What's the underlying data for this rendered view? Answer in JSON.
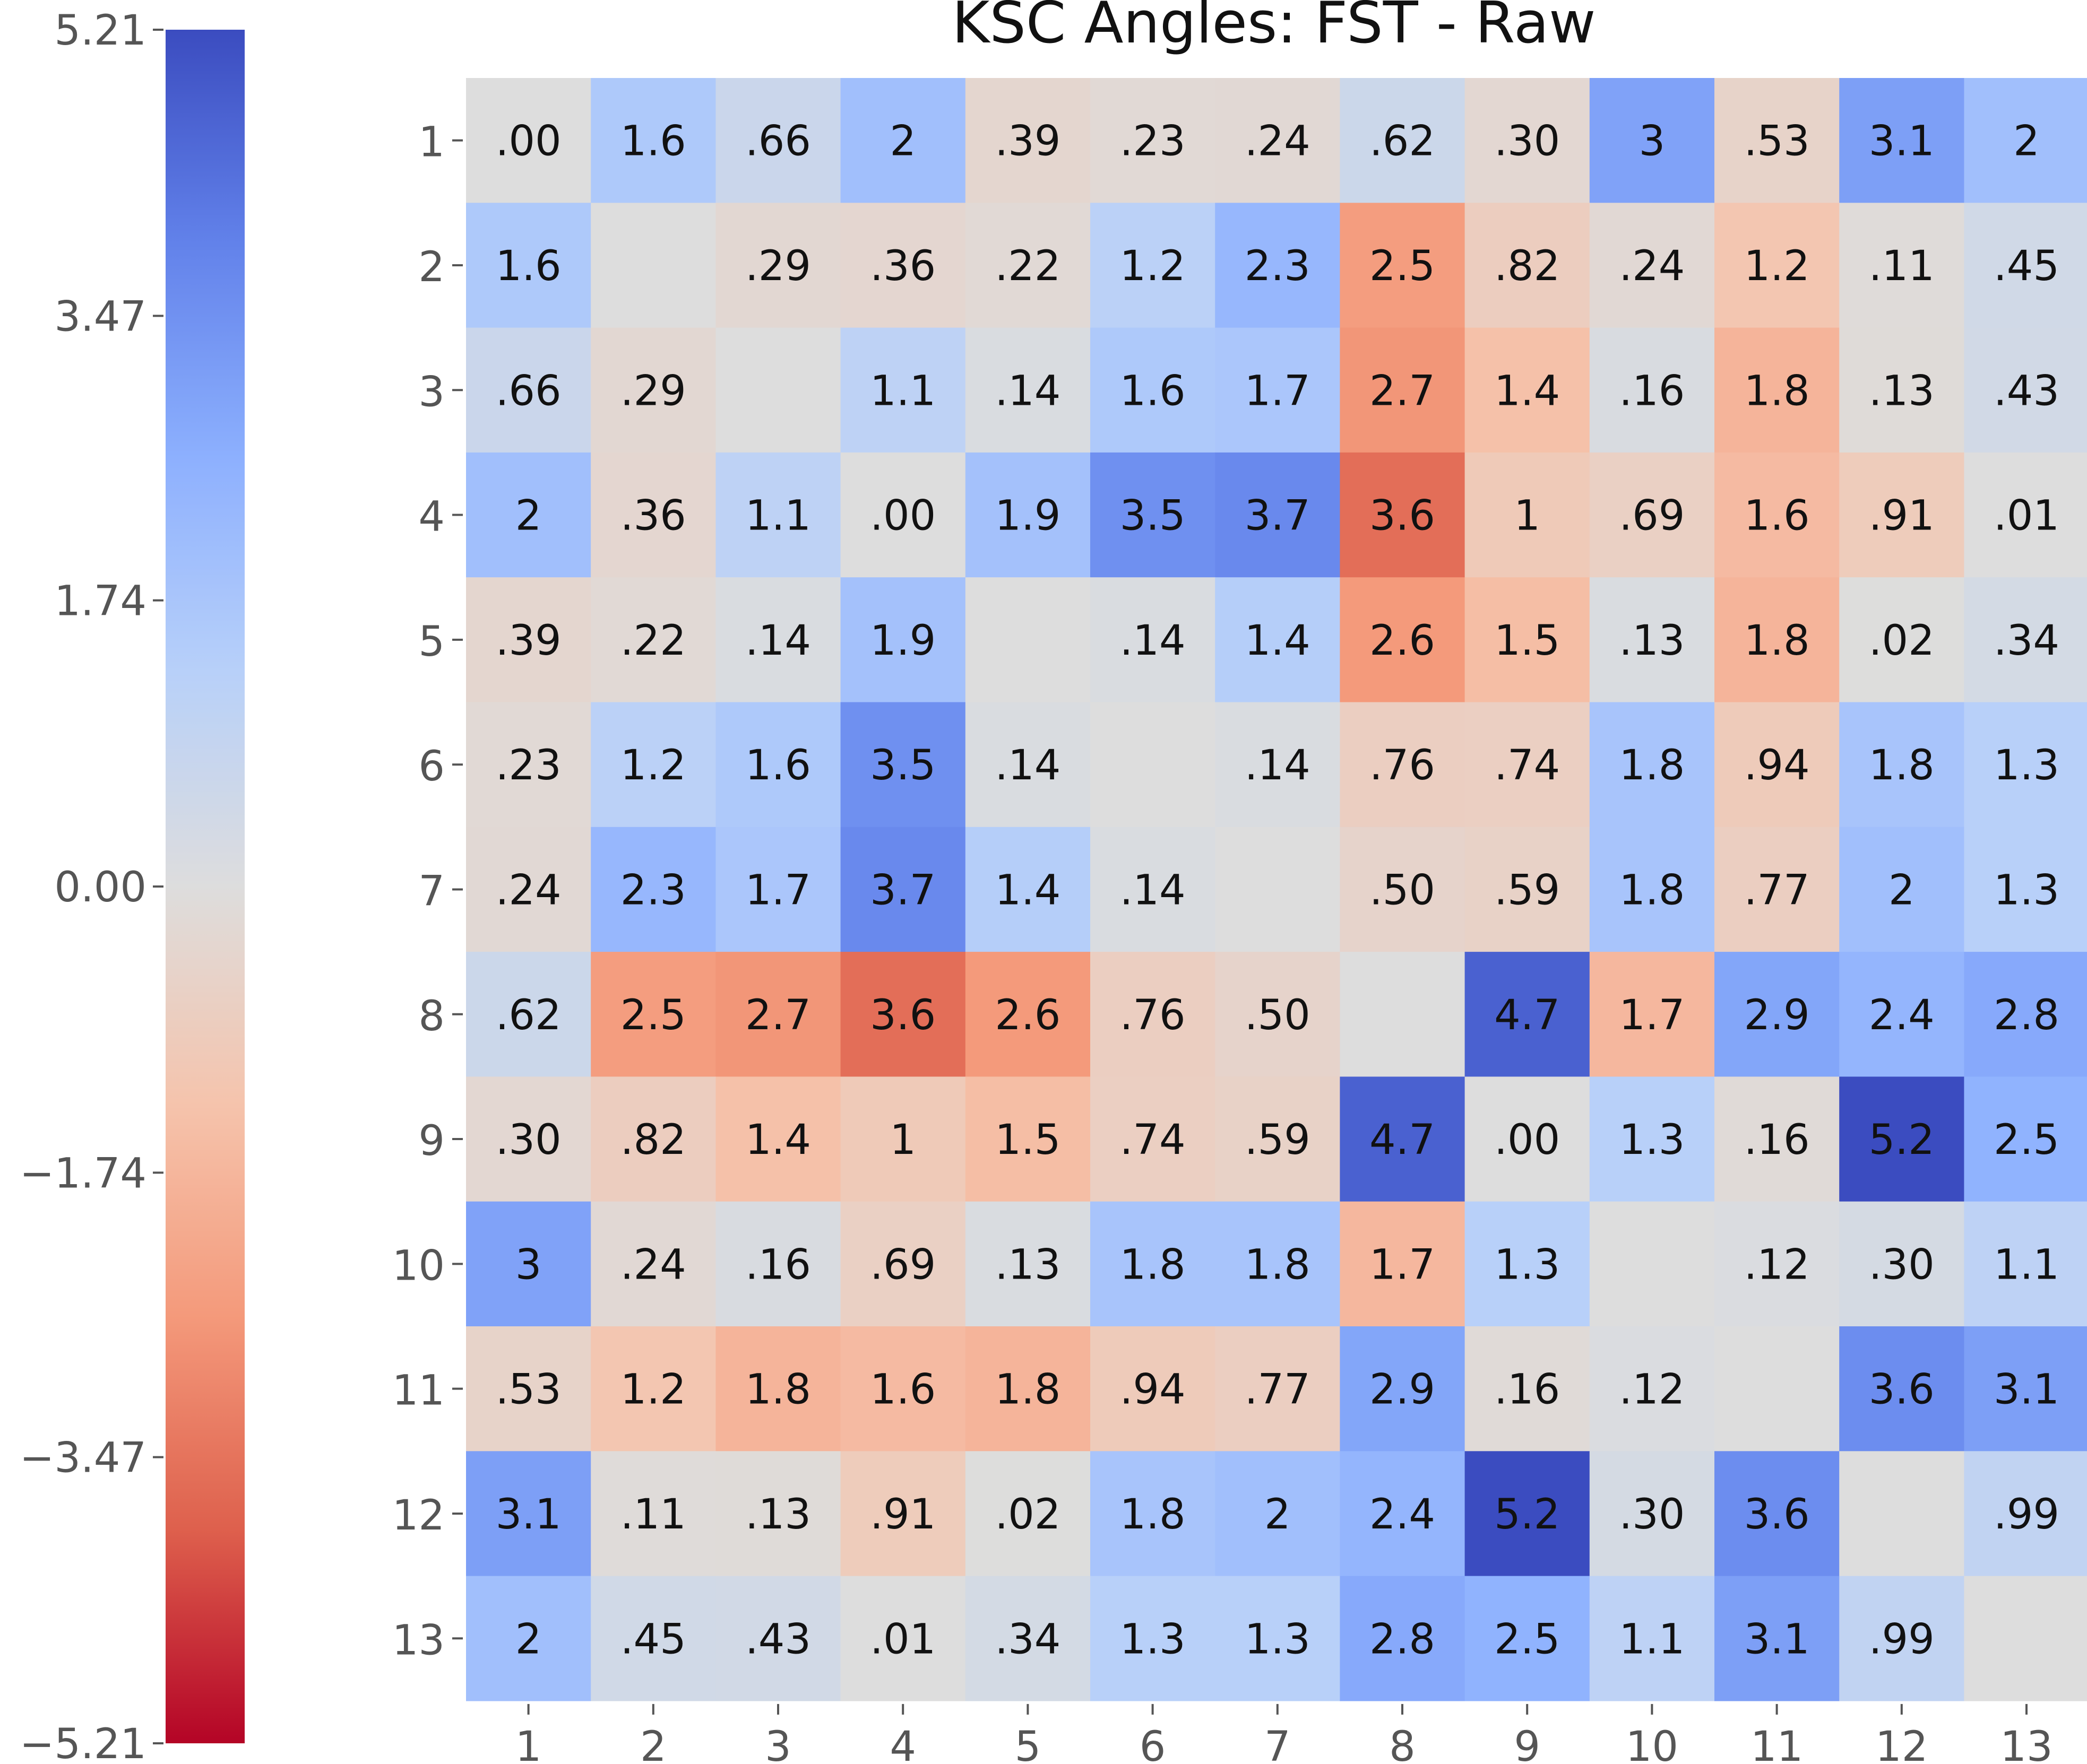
{
  "chart_data": {
    "type": "heatmap",
    "title": "KSC Angles: FST - Raw",
    "x_tick_labels": [
      "1",
      "2",
      "3",
      "4",
      "5",
      "6",
      "7",
      "8",
      "9",
      "10",
      "11",
      "12",
      "13"
    ],
    "y_tick_labels": [
      "1",
      "2",
      "3",
      "4",
      "5",
      "6",
      "7",
      "8",
      "9",
      "10",
      "11",
      "12",
      "13"
    ],
    "cell_labels": [
      [
        ".00",
        "1.6",
        ".66",
        "2",
        ".39",
        ".23",
        ".24",
        ".62",
        ".30",
        "3",
        ".53",
        "3.1",
        "2"
      ],
      [
        "1.6",
        "",
        ".29",
        ".36",
        ".22",
        "1.2",
        "2.3",
        "2.5",
        ".82",
        ".24",
        "1.2",
        ".11",
        ".45"
      ],
      [
        ".66",
        ".29",
        "",
        "1.1",
        ".14",
        "1.6",
        "1.7",
        "2.7",
        "1.4",
        ".16",
        "1.8",
        ".13",
        ".43"
      ],
      [
        "2",
        ".36",
        "1.1",
        ".00",
        "1.9",
        "3.5",
        "3.7",
        "3.6",
        "1",
        ".69",
        "1.6",
        ".91",
        ".01"
      ],
      [
        ".39",
        ".22",
        ".14",
        "1.9",
        "",
        ".14",
        "1.4",
        "2.6",
        "1.5",
        ".13",
        "1.8",
        ".02",
        ".34"
      ],
      [
        ".23",
        "1.2",
        "1.6",
        "3.5",
        ".14",
        "",
        ".14",
        ".76",
        ".74",
        "1.8",
        ".94",
        "1.8",
        "1.3"
      ],
      [
        ".24",
        "2.3",
        "1.7",
        "3.7",
        "1.4",
        ".14",
        "",
        ".50",
        ".59",
        "1.8",
        ".77",
        "2",
        "1.3"
      ],
      [
        ".62",
        "2.5",
        "2.7",
        "3.6",
        "2.6",
        ".76",
        ".50",
        "",
        "4.7",
        "1.7",
        "2.9",
        "2.4",
        "2.8"
      ],
      [
        ".30",
        ".82",
        "1.4",
        "1",
        "1.5",
        ".74",
        ".59",
        "4.7",
        ".00",
        "1.3",
        ".16",
        "5.2",
        "2.5"
      ],
      [
        "3",
        ".24",
        ".16",
        ".69",
        ".13",
        "1.8",
        "1.8",
        "1.7",
        "1.3",
        "",
        ".12",
        ".30",
        "1.1"
      ],
      [
        ".53",
        "1.2",
        "1.8",
        "1.6",
        "1.8",
        ".94",
        ".77",
        "2.9",
        ".16",
        ".12",
        "",
        "3.6",
        "3.1"
      ],
      [
        "3.1",
        ".11",
        ".13",
        ".91",
        ".02",
        "1.8",
        "2",
        "2.4",
        "5.2",
        ".30",
        "3.6",
        "",
        ".99"
      ],
      [
        "2",
        ".45",
        ".43",
        ".01",
        ".34",
        "1.3",
        "1.3",
        "2.8",
        "2.5",
        "1.1",
        "3.1",
        ".99",
        ""
      ]
    ],
    "values": [
      [
        0.0,
        1.6,
        0.66,
        2.0,
        -0.39,
        -0.23,
        -0.24,
        0.62,
        -0.3,
        3.0,
        -0.53,
        3.1,
        2.0
      ],
      [
        1.6,
        0.0,
        -0.29,
        -0.36,
        -0.22,
        1.2,
        2.3,
        -2.5,
        -0.82,
        -0.24,
        -1.2,
        -0.11,
        0.45
      ],
      [
        0.66,
        -0.29,
        0.0,
        1.1,
        0.14,
        1.6,
        1.7,
        -2.7,
        -1.4,
        0.16,
        -1.8,
        -0.13,
        0.43
      ],
      [
        2.0,
        -0.36,
        1.1,
        0.0,
        1.9,
        3.5,
        3.7,
        -3.6,
        -1.0,
        -0.69,
        -1.6,
        -0.91,
        0.01
      ],
      [
        -0.39,
        -0.22,
        0.14,
        1.9,
        0.0,
        0.14,
        1.4,
        -2.6,
        -1.5,
        0.13,
        -1.8,
        -0.02,
        0.34
      ],
      [
        -0.23,
        1.2,
        1.6,
        3.5,
        0.14,
        0.0,
        0.14,
        -0.76,
        -0.74,
        1.8,
        -0.94,
        1.8,
        1.3
      ],
      [
        -0.24,
        2.3,
        1.7,
        3.7,
        1.4,
        0.14,
        0.0,
        -0.5,
        -0.59,
        1.8,
        -0.77,
        2.0,
        1.3
      ],
      [
        0.62,
        -2.5,
        -2.7,
        -3.6,
        -2.6,
        -0.76,
        -0.5,
        0.0,
        4.7,
        -1.7,
        2.9,
        2.4,
        2.8
      ],
      [
        -0.3,
        -0.82,
        -1.4,
        -1.0,
        -1.5,
        -0.74,
        -0.59,
        4.7,
        0.0,
        1.3,
        -0.16,
        5.2,
        2.5
      ],
      [
        3.0,
        -0.24,
        0.16,
        -0.69,
        0.13,
        1.8,
        1.8,
        -1.7,
        1.3,
        0.0,
        0.12,
        0.3,
        1.1
      ],
      [
        -0.53,
        -1.2,
        -1.8,
        -1.6,
        -1.8,
        -0.94,
        -0.77,
        2.9,
        -0.16,
        0.12,
        0.0,
        3.6,
        3.1
      ],
      [
        3.1,
        -0.11,
        -0.13,
        -0.91,
        -0.02,
        1.8,
        2.0,
        2.4,
        5.2,
        0.3,
        3.6,
        0.0,
        0.99
      ],
      [
        2.0,
        0.45,
        0.43,
        0.01,
        0.34,
        1.3,
        1.3,
        2.8,
        2.5,
        1.1,
        3.1,
        0.99,
        0.0
      ]
    ],
    "colorbar": {
      "min": -5.21,
      "max": 5.21,
      "tick_labels": [
        "5.21",
        "3.47",
        "1.74",
        "0.00",
        "−1.74",
        "−3.47",
        "−5.21"
      ],
      "tick_values": [
        5.21,
        3.47,
        1.74,
        0.0,
        -1.74,
        -3.47,
        -5.21
      ],
      "colormap": "coolwarm_r",
      "color_low": "#b40426",
      "color_mid": "#dddddd",
      "color_high": "#3b4cc0"
    },
    "grid": false
  }
}
